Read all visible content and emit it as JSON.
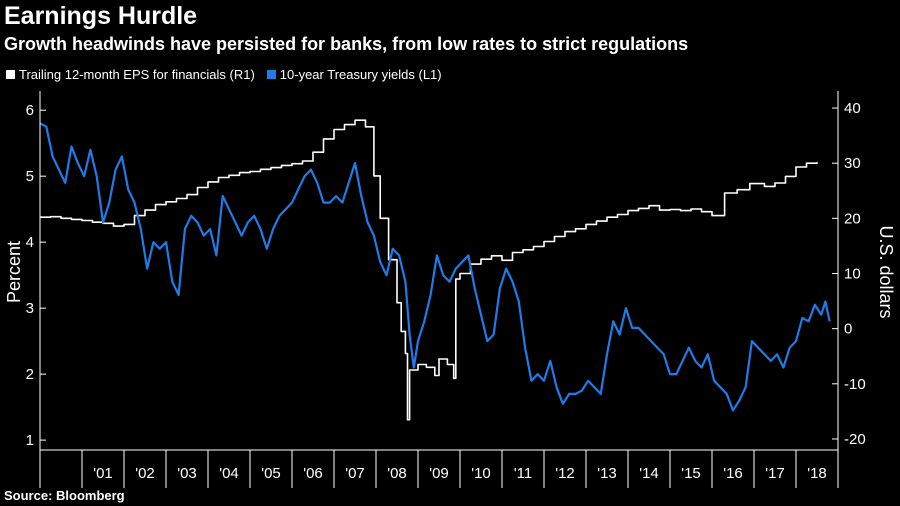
{
  "header": {
    "title": "Earnings Hurdle",
    "subtitle": "Growth headwinds have persisted for banks, from low rates to strict regulations"
  },
  "footer": {
    "source": "Source: Bloomberg"
  },
  "colors": {
    "background": "#000000",
    "eps": "#ffffff",
    "yield": "#1f7be8",
    "axis": "#ffffff"
  },
  "chart_data": {
    "type": "line",
    "title": "Earnings Hurdle",
    "subtitle": "Growth headwinds have persisted for banks, from low rates to strict regulations",
    "left_axis": {
      "label": "Percent",
      "ylim": [
        0.85,
        6.2
      ],
      "ticks": [
        1,
        2,
        3,
        4,
        5,
        6
      ]
    },
    "right_axis": {
      "label": "U.S. dollars",
      "ylim": [
        -22,
        42
      ],
      "ticks": [
        -20,
        -10,
        0,
        10,
        20,
        30,
        40
      ]
    },
    "x_axis": {
      "xlim": [
        2000.0,
        2019.0
      ],
      "tick_labels": [
        "'01",
        "'02",
        "'03",
        "'04",
        "'05",
        "'06",
        "'07",
        "'08",
        "'09",
        "'10",
        "'11",
        "'12",
        "'13",
        "'14",
        "'15",
        "'16",
        "'17",
        "'18"
      ]
    },
    "legend": {
      "placement": "top-left"
    },
    "series": [
      {
        "name": "Trailing 12-month EPS for financials (R1)",
        "axis": "right",
        "color": "#ffffff",
        "style": "step",
        "points": [
          [
            2000.0,
            20.2
          ],
          [
            2000.25,
            20.3
          ],
          [
            2000.5,
            20.0
          ],
          [
            2000.75,
            19.8
          ],
          [
            2001.0,
            19.6
          ],
          [
            2001.25,
            19.3
          ],
          [
            2001.5,
            19.1
          ],
          [
            2001.75,
            18.6
          ],
          [
            2002.0,
            18.9
          ],
          [
            2002.25,
            20.5
          ],
          [
            2002.5,
            21.5
          ],
          [
            2002.75,
            22.5
          ],
          [
            2003.0,
            23.0
          ],
          [
            2003.25,
            23.6
          ],
          [
            2003.5,
            24.3
          ],
          [
            2003.75,
            25.6
          ],
          [
            2004.0,
            26.6
          ],
          [
            2004.25,
            27.4
          ],
          [
            2004.5,
            27.8
          ],
          [
            2004.75,
            28.3
          ],
          [
            2005.0,
            28.5
          ],
          [
            2005.25,
            28.9
          ],
          [
            2005.5,
            29.2
          ],
          [
            2005.75,
            29.6
          ],
          [
            2006.0,
            29.9
          ],
          [
            2006.25,
            30.4
          ],
          [
            2006.5,
            32.0
          ],
          [
            2006.75,
            34.4
          ],
          [
            2007.0,
            36.1
          ],
          [
            2007.25,
            37.0
          ],
          [
            2007.5,
            37.8
          ],
          [
            2007.75,
            36.6
          ],
          [
            2007.95,
            27.7
          ],
          [
            2008.1,
            20.0
          ],
          [
            2008.3,
            12.5
          ],
          [
            2008.5,
            4.7
          ],
          [
            2008.6,
            -0.5
          ],
          [
            2008.7,
            -4.5
          ],
          [
            2008.75,
            -16.5
          ],
          [
            2008.8,
            -7.5
          ],
          [
            2009.0,
            -6.5
          ],
          [
            2009.2,
            -7.0
          ],
          [
            2009.4,
            -8.5
          ],
          [
            2009.5,
            -5.5
          ],
          [
            2009.7,
            -6.5
          ],
          [
            2009.85,
            -9.0
          ],
          [
            2009.9,
            9.0
          ],
          [
            2010.0,
            10.0
          ],
          [
            2010.25,
            11.7
          ],
          [
            2010.5,
            12.6
          ],
          [
            2010.75,
            13.2
          ],
          [
            2011.0,
            12.4
          ],
          [
            2011.25,
            13.8
          ],
          [
            2011.5,
            14.3
          ],
          [
            2011.75,
            14.9
          ],
          [
            2012.0,
            15.8
          ],
          [
            2012.25,
            16.7
          ],
          [
            2012.5,
            17.6
          ],
          [
            2012.75,
            18.1
          ],
          [
            2013.0,
            18.9
          ],
          [
            2013.25,
            19.5
          ],
          [
            2013.5,
            20.2
          ],
          [
            2013.75,
            20.7
          ],
          [
            2014.0,
            21.4
          ],
          [
            2014.25,
            21.8
          ],
          [
            2014.5,
            22.3
          ],
          [
            2014.75,
            21.5
          ],
          [
            2015.0,
            21.6
          ],
          [
            2015.25,
            21.4
          ],
          [
            2015.5,
            21.7
          ],
          [
            2015.75,
            21.2
          ],
          [
            2016.0,
            20.5
          ],
          [
            2016.3,
            24.6
          ],
          [
            2016.6,
            25.2
          ],
          [
            2016.9,
            26.3
          ],
          [
            2017.25,
            25.8
          ],
          [
            2017.5,
            26.4
          ],
          [
            2017.75,
            27.6
          ],
          [
            2018.0,
            29.3
          ],
          [
            2018.25,
            30.0
          ],
          [
            2018.5,
            30.2
          ]
        ]
      },
      {
        "name": "10-year Treasury yields (L1)",
        "axis": "left",
        "color": "#1f7be8",
        "style": "line",
        "points": [
          [
            2000.0,
            5.8
          ],
          [
            2000.15,
            5.75
          ],
          [
            2000.3,
            5.3
          ],
          [
            2000.45,
            5.1
          ],
          [
            2000.6,
            4.9
          ],
          [
            2000.75,
            5.45
          ],
          [
            2000.9,
            5.2
          ],
          [
            2001.05,
            5.0
          ],
          [
            2001.2,
            5.4
          ],
          [
            2001.35,
            5.0
          ],
          [
            2001.5,
            4.3
          ],
          [
            2001.65,
            4.6
          ],
          [
            2001.8,
            5.1
          ],
          [
            2001.95,
            5.3
          ],
          [
            2002.1,
            4.8
          ],
          [
            2002.25,
            4.6
          ],
          [
            2002.4,
            4.2
          ],
          [
            2002.55,
            3.6
          ],
          [
            2002.7,
            4.0
          ],
          [
            2002.85,
            3.9
          ],
          [
            2003.0,
            4.0
          ],
          [
            2003.15,
            3.4
          ],
          [
            2003.3,
            3.2
          ],
          [
            2003.45,
            4.2
          ],
          [
            2003.6,
            4.4
          ],
          [
            2003.75,
            4.3
          ],
          [
            2003.9,
            4.1
          ],
          [
            2004.05,
            4.2
          ],
          [
            2004.2,
            3.8
          ],
          [
            2004.35,
            4.7
          ],
          [
            2004.5,
            4.5
          ],
          [
            2004.65,
            4.3
          ],
          [
            2004.8,
            4.1
          ],
          [
            2004.95,
            4.3
          ],
          [
            2005.1,
            4.4
          ],
          [
            2005.25,
            4.2
          ],
          [
            2005.4,
            3.9
          ],
          [
            2005.55,
            4.2
          ],
          [
            2005.7,
            4.4
          ],
          [
            2005.85,
            4.5
          ],
          [
            2006.0,
            4.6
          ],
          [
            2006.15,
            4.8
          ],
          [
            2006.3,
            5.0
          ],
          [
            2006.45,
            5.1
          ],
          [
            2006.6,
            4.9
          ],
          [
            2006.75,
            4.6
          ],
          [
            2006.9,
            4.6
          ],
          [
            2007.05,
            4.7
          ],
          [
            2007.2,
            4.6
          ],
          [
            2007.35,
            4.9
          ],
          [
            2007.5,
            5.2
          ],
          [
            2007.65,
            4.7
          ],
          [
            2007.8,
            4.3
          ],
          [
            2007.95,
            4.1
          ],
          [
            2008.1,
            3.7
          ],
          [
            2008.25,
            3.5
          ],
          [
            2008.4,
            3.9
          ],
          [
            2008.55,
            3.8
          ],
          [
            2008.7,
            3.4
          ],
          [
            2008.8,
            2.6
          ],
          [
            2008.9,
            2.1
          ],
          [
            2009.0,
            2.5
          ],
          [
            2009.15,
            2.8
          ],
          [
            2009.3,
            3.2
          ],
          [
            2009.45,
            3.8
          ],
          [
            2009.6,
            3.5
          ],
          [
            2009.75,
            3.4
          ],
          [
            2009.9,
            3.6
          ],
          [
            2010.05,
            3.7
          ],
          [
            2010.2,
            3.8
          ],
          [
            2010.35,
            3.3
          ],
          [
            2010.5,
            2.9
          ],
          [
            2010.65,
            2.5
          ],
          [
            2010.8,
            2.6
          ],
          [
            2010.95,
            3.3
          ],
          [
            2011.1,
            3.6
          ],
          [
            2011.25,
            3.4
          ],
          [
            2011.4,
            3.1
          ],
          [
            2011.55,
            2.4
          ],
          [
            2011.7,
            1.9
          ],
          [
            2011.85,
            2.0
          ],
          [
            2012.0,
            1.9
          ],
          [
            2012.15,
            2.2
          ],
          [
            2012.3,
            1.8
          ],
          [
            2012.45,
            1.55
          ],
          [
            2012.6,
            1.7
          ],
          [
            2012.75,
            1.7
          ],
          [
            2012.9,
            1.75
          ],
          [
            2013.05,
            1.9
          ],
          [
            2013.2,
            1.8
          ],
          [
            2013.35,
            1.7
          ],
          [
            2013.5,
            2.3
          ],
          [
            2013.65,
            2.8
          ],
          [
            2013.8,
            2.6
          ],
          [
            2013.95,
            3.0
          ],
          [
            2014.1,
            2.7
          ],
          [
            2014.25,
            2.7
          ],
          [
            2014.4,
            2.6
          ],
          [
            2014.55,
            2.5
          ],
          [
            2014.7,
            2.4
          ],
          [
            2014.85,
            2.3
          ],
          [
            2015.0,
            2.0
          ],
          [
            2015.15,
            2.0
          ],
          [
            2015.3,
            2.2
          ],
          [
            2015.45,
            2.4
          ],
          [
            2015.6,
            2.2
          ],
          [
            2015.75,
            2.1
          ],
          [
            2015.9,
            2.3
          ],
          [
            2016.05,
            1.9
          ],
          [
            2016.2,
            1.8
          ],
          [
            2016.35,
            1.7
          ],
          [
            2016.5,
            1.45
          ],
          [
            2016.65,
            1.6
          ],
          [
            2016.8,
            1.8
          ],
          [
            2016.95,
            2.5
          ],
          [
            2017.1,
            2.4
          ],
          [
            2017.25,
            2.3
          ],
          [
            2017.4,
            2.2
          ],
          [
            2017.55,
            2.3
          ],
          [
            2017.7,
            2.1
          ],
          [
            2017.85,
            2.4
          ],
          [
            2018.0,
            2.5
          ],
          [
            2018.15,
            2.85
          ],
          [
            2018.3,
            2.8
          ],
          [
            2018.45,
            3.05
          ],
          [
            2018.6,
            2.9
          ],
          [
            2018.7,
            3.1
          ],
          [
            2018.8,
            2.8
          ]
        ]
      }
    ]
  }
}
